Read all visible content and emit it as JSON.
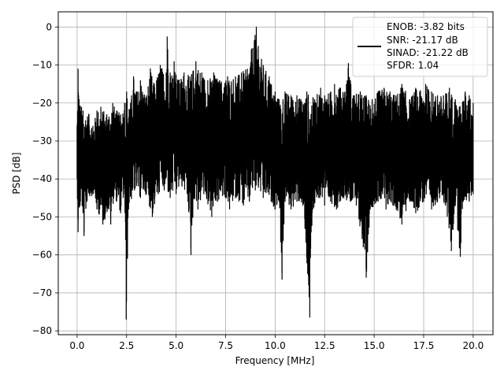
{
  "chart_data": {
    "type": "line",
    "xlabel": "Frequency [MHz]",
    "ylabel": "PSD [dB]",
    "xlim": [
      -0.95,
      21.0
    ],
    "ylim": [
      -81.0,
      4.0
    ],
    "x_ticks": [
      0.0,
      2.5,
      5.0,
      7.5,
      10.0,
      12.5,
      15.0,
      17.5,
      20.0
    ],
    "x_tick_labels": [
      "0.0",
      "2.5",
      "5.0",
      "7.5",
      "10.0",
      "12.5",
      "15.0",
      "17.5",
      "20.0"
    ],
    "y_ticks": [
      0,
      -10,
      -20,
      -30,
      -40,
      -50,
      -60,
      -70,
      -80
    ],
    "y_tick_labels": [
      "0",
      "−10",
      "−20",
      "−30",
      "−40",
      "−50",
      "−60",
      "−70",
      "−80"
    ],
    "grid": true,
    "legend_position": "top-right",
    "legend_lines": [
      "ENOB: -3.82 bits",
      "SNR: -21.17 dB",
      "SINAD: -21.22 dB",
      "SFDR: 1.04"
    ],
    "series": [
      {
        "color": "#000000",
        "upper_envelope": [
          [
            0.0,
            -26.0
          ],
          [
            0.05,
            -11.0
          ],
          [
            0.1,
            -19.0
          ],
          [
            0.3,
            -22.0
          ],
          [
            0.6,
            -23.0
          ],
          [
            0.8,
            -26.0
          ],
          [
            1.0,
            -22.0
          ],
          [
            1.2,
            -21.0
          ],
          [
            1.5,
            -23.0
          ],
          [
            1.8,
            -20.0
          ],
          [
            2.0,
            -22.0
          ],
          [
            2.2,
            -23.0
          ],
          [
            2.4,
            -20.0
          ],
          [
            2.5,
            -17.0
          ],
          [
            2.7,
            -20.0
          ],
          [
            2.85,
            -13.0
          ],
          [
            3.0,
            -17.0
          ],
          [
            3.2,
            -14.0
          ],
          [
            3.5,
            -18.0
          ],
          [
            3.7,
            -11.0
          ],
          [
            3.9,
            -15.0
          ],
          [
            4.2,
            -10.0
          ],
          [
            4.5,
            -12.0
          ],
          [
            4.55,
            -2.5
          ],
          [
            4.7,
            -12.0
          ],
          [
            4.9,
            -9.0
          ],
          [
            5.1,
            -14.0
          ],
          [
            5.4,
            -12.0
          ],
          [
            5.7,
            -13.0
          ],
          [
            6.0,
            -9.0
          ],
          [
            6.3,
            -12.0
          ],
          [
            6.6,
            -14.0
          ],
          [
            6.9,
            -12.0
          ],
          [
            7.2,
            -14.0
          ],
          [
            7.6,
            -13.0
          ],
          [
            8.0,
            -13.0
          ],
          [
            8.3,
            -12.0
          ],
          [
            8.6,
            -11.0
          ],
          [
            8.8,
            -6.0
          ],
          [
            8.95,
            -3.5
          ],
          [
            9.05,
            0.0
          ],
          [
            9.15,
            -5.0
          ],
          [
            9.4,
            -10.0
          ],
          [
            9.7,
            -13.0
          ],
          [
            10.0,
            -17.0
          ],
          [
            10.2,
            -19.0
          ],
          [
            10.5,
            -17.0
          ],
          [
            10.8,
            -18.0
          ],
          [
            11.1,
            -18.0
          ],
          [
            11.3,
            -19.0
          ],
          [
            11.6,
            -17.0
          ],
          [
            12.0,
            -19.0
          ],
          [
            12.3,
            -16.0
          ],
          [
            12.5,
            -18.0
          ],
          [
            12.8,
            -17.0
          ],
          [
            13.0,
            -15.0
          ],
          [
            13.3,
            -16.0
          ],
          [
            13.6,
            -15.0
          ],
          [
            13.7,
            -9.5
          ],
          [
            13.8,
            -14.0
          ],
          [
            14.0,
            -18.0
          ],
          [
            14.3,
            -17.0
          ],
          [
            14.6,
            -18.0
          ],
          [
            14.9,
            -19.0
          ],
          [
            15.2,
            -17.0
          ],
          [
            15.5,
            -16.0
          ],
          [
            15.8,
            -17.0
          ],
          [
            16.1,
            -18.0
          ],
          [
            16.4,
            -15.0
          ],
          [
            16.8,
            -19.0
          ],
          [
            17.1,
            -16.0
          ],
          [
            17.3,
            -17.0
          ],
          [
            17.6,
            -15.0
          ],
          [
            17.9,
            -17.0
          ],
          [
            18.2,
            -18.0
          ],
          [
            18.5,
            -18.0
          ],
          [
            18.8,
            -16.0
          ],
          [
            19.1,
            -19.0
          ],
          [
            19.3,
            -21.0
          ],
          [
            19.6,
            -17.0
          ],
          [
            19.8,
            -18.0
          ],
          [
            20.0,
            -20.0
          ]
        ],
        "lower_envelope": [
          [
            0.0,
            -40.0
          ],
          [
            0.05,
            -54.0
          ],
          [
            0.15,
            -47.0
          ],
          [
            0.3,
            -49.0
          ],
          [
            0.35,
            -55.0
          ],
          [
            0.5,
            -46.0
          ],
          [
            0.8,
            -44.0
          ],
          [
            1.0,
            -48.0
          ],
          [
            1.3,
            -52.0
          ],
          [
            1.6,
            -48.0
          ],
          [
            1.7,
            -52.0
          ],
          [
            1.85,
            -45.0
          ],
          [
            2.0,
            -46.0
          ],
          [
            2.2,
            -49.0
          ],
          [
            2.4,
            -44.0
          ],
          [
            2.48,
            -77.0
          ],
          [
            2.6,
            -48.0
          ],
          [
            2.9,
            -43.0
          ],
          [
            3.2,
            -45.0
          ],
          [
            3.5,
            -44.0
          ],
          [
            3.8,
            -50.0
          ],
          [
            4.1,
            -44.0
          ],
          [
            4.4,
            -43.0
          ],
          [
            4.7,
            -45.0
          ],
          [
            5.0,
            -44.0
          ],
          [
            5.3,
            -42.0
          ],
          [
            5.6,
            -46.0
          ],
          [
            5.75,
            -60.0
          ],
          [
            5.9,
            -45.0
          ],
          [
            6.1,
            -48.0
          ],
          [
            6.4,
            -44.0
          ],
          [
            6.8,
            -50.0
          ],
          [
            7.1,
            -46.0
          ],
          [
            7.5,
            -45.0
          ],
          [
            7.7,
            -48.0
          ],
          [
            8.0,
            -45.0
          ],
          [
            8.4,
            -47.0
          ],
          [
            8.7,
            -46.0
          ],
          [
            9.0,
            -43.0
          ],
          [
            9.4,
            -45.0
          ],
          [
            9.8,
            -46.0
          ],
          [
            10.0,
            -48.0
          ],
          [
            10.2,
            -46.0
          ],
          [
            10.35,
            -66.5
          ],
          [
            10.5,
            -46.0
          ],
          [
            10.8,
            -48.0
          ],
          [
            11.1,
            -46.0
          ],
          [
            11.4,
            -47.0
          ],
          [
            11.75,
            -76.5
          ],
          [
            11.9,
            -48.0
          ],
          [
            12.2,
            -45.0
          ],
          [
            12.5,
            -47.0
          ],
          [
            12.8,
            -46.0
          ],
          [
            13.1,
            -48.0
          ],
          [
            13.4,
            -45.0
          ],
          [
            13.8,
            -46.0
          ],
          [
            14.1,
            -47.0
          ],
          [
            14.45,
            -58.0
          ],
          [
            14.6,
            -66.0
          ],
          [
            14.8,
            -48.0
          ],
          [
            15.2,
            -46.0
          ],
          [
            15.6,
            -48.0
          ],
          [
            16.0,
            -47.0
          ],
          [
            16.4,
            -52.0
          ],
          [
            16.8,
            -46.0
          ],
          [
            17.1,
            -49.0
          ],
          [
            17.5,
            -46.0
          ],
          [
            17.9,
            -48.0
          ],
          [
            18.2,
            -46.0
          ],
          [
            18.6,
            -47.0
          ],
          [
            18.9,
            -59.0
          ],
          [
            19.1,
            -47.0
          ],
          [
            19.35,
            -60.5
          ],
          [
            19.5,
            -46.0
          ],
          [
            19.8,
            -46.0
          ],
          [
            20.0,
            -44.0
          ]
        ]
      }
    ]
  }
}
